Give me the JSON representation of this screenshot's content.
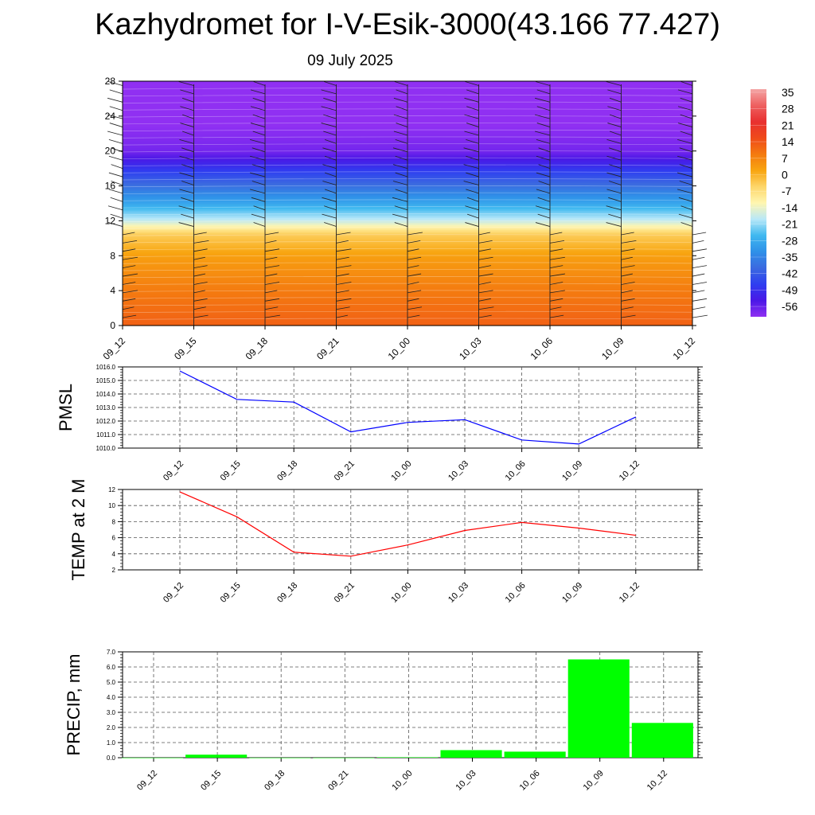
{
  "title": "Kazhydromet for I-V-Esik-3000(43.166 77.427)",
  "subtitle": "09 July 2025",
  "time_labels": [
    "09_12",
    "09_15",
    "09_18",
    "09_21",
    "10_00",
    "10_03",
    "10_06",
    "10_09",
    "10_12"
  ],
  "chart_data": [
    {
      "type": "heatmap",
      "title": "",
      "xlabel": "",
      "ylabel": "",
      "x": [
        "09_12",
        "09_15",
        "09_18",
        "09_21",
        "10_00",
        "10_03",
        "10_06",
        "10_09",
        "10_12"
      ],
      "ylim": [
        0,
        28
      ],
      "yticks": [
        0,
        4,
        8,
        12,
        16,
        20,
        24,
        28
      ],
      "colorbar": {
        "labels": [
          "35",
          "28",
          "21",
          "14",
          "7",
          "0",
          "-7",
          "-14",
          "-21",
          "-28",
          "-35",
          "-42",
          "-49",
          "-56"
        ],
        "colors": [
          "#f4a5a5",
          "#ee6060",
          "#e83030",
          "#ef4a1a",
          "#f47a10",
          "#f8a510",
          "#fdd66a",
          "#fff6b0",
          "#b8e8f8",
          "#3fb8f0",
          "#2f90e8",
          "#3b6ae0",
          "#2f3ef0",
          "#4b18e6",
          "#9030f2"
        ]
      },
      "temperature_profile": [
        {
          "level": 0,
          "value": 13
        },
        {
          "level": 4,
          "value": 9
        },
        {
          "level": 8,
          "value": 3
        },
        {
          "level": 10.5,
          "value": -4
        },
        {
          "level": 12,
          "value": -18
        },
        {
          "level": 14,
          "value": -30
        },
        {
          "level": 16,
          "value": -40
        },
        {
          "level": 18,
          "value": -50
        },
        {
          "level": 20,
          "value": -60
        },
        {
          "level": 22,
          "value": -62
        },
        {
          "level": 24,
          "value": -64
        },
        {
          "level": 28,
          "value": -66
        }
      ]
    },
    {
      "type": "line",
      "ylabel": "PMSL",
      "x": [
        "09_12",
        "09_15",
        "09_18",
        "09_21",
        "10_00",
        "10_03",
        "10_06",
        "10_09",
        "10_12"
      ],
      "ylim": [
        1010.0,
        1016.0
      ],
      "yticks": [
        "1010.0",
        "1011.0",
        "1012.0",
        "1013.0",
        "1014.0",
        "1015.0",
        "1016.0"
      ],
      "series": [
        {
          "values": [
            1015.7,
            1013.6,
            1013.4,
            1011.2,
            1011.9,
            1012.1,
            1010.6,
            1010.3,
            1012.3
          ],
          "color": "#0000ff"
        }
      ],
      "grid": true
    },
    {
      "type": "line",
      "ylabel": "TEMP at 2 M",
      "x": [
        "09_12",
        "09_15",
        "09_18",
        "09_21",
        "10_00",
        "10_03",
        "10_06",
        "10_09",
        "10_12"
      ],
      "ylim": [
        2,
        12
      ],
      "yticks": [
        "2",
        "4",
        "6",
        "8",
        "10",
        "12"
      ],
      "series": [
        {
          "values": [
            11.7,
            8.6,
            4.2,
            3.7,
            5.1,
            6.9,
            7.9,
            7.2,
            6.3
          ],
          "color": "#ff0000"
        }
      ],
      "grid": true
    },
    {
      "type": "bar",
      "ylabel": "PRECIP, mm",
      "categories": [
        "09_12",
        "09_15",
        "09_18",
        "09_21",
        "10_00",
        "10_03",
        "10_06",
        "10_09",
        "10_12"
      ],
      "values": [
        0.0,
        0.2,
        0.0,
        0.0,
        0.03,
        0.5,
        0.4,
        6.5,
        2.3
      ],
      "ylim": [
        0.0,
        7.0
      ],
      "yticks": [
        "0.0",
        "1.0",
        "2.0",
        "3.0",
        "4.0",
        "5.0",
        "6.0",
        "7.0"
      ],
      "bar_color": "#00ff00",
      "grid": true
    }
  ]
}
